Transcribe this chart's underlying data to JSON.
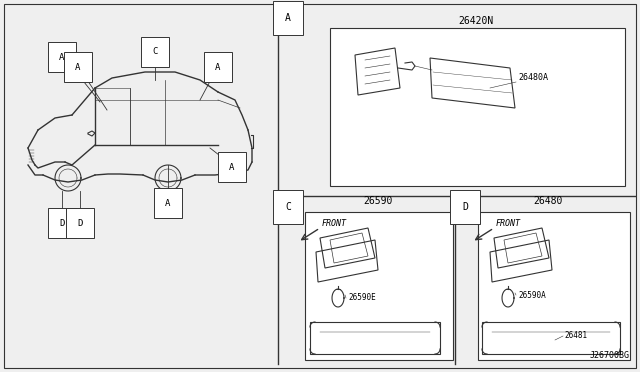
{
  "bg_color": "#efefef",
  "line_color": "#333333",
  "part_number_bottom": "J26700BG",
  "section_A_label": "A",
  "section_C_label": "C",
  "section_D_label": "D",
  "part_26420N": "26420N",
  "part_2648A": "26480A",
  "part_26590": "26590",
  "part_26590E": "26590E",
  "part_26480": "26480",
  "part_26590A": "26590A",
  "part_26481": "26481",
  "front_label": "FRONT"
}
